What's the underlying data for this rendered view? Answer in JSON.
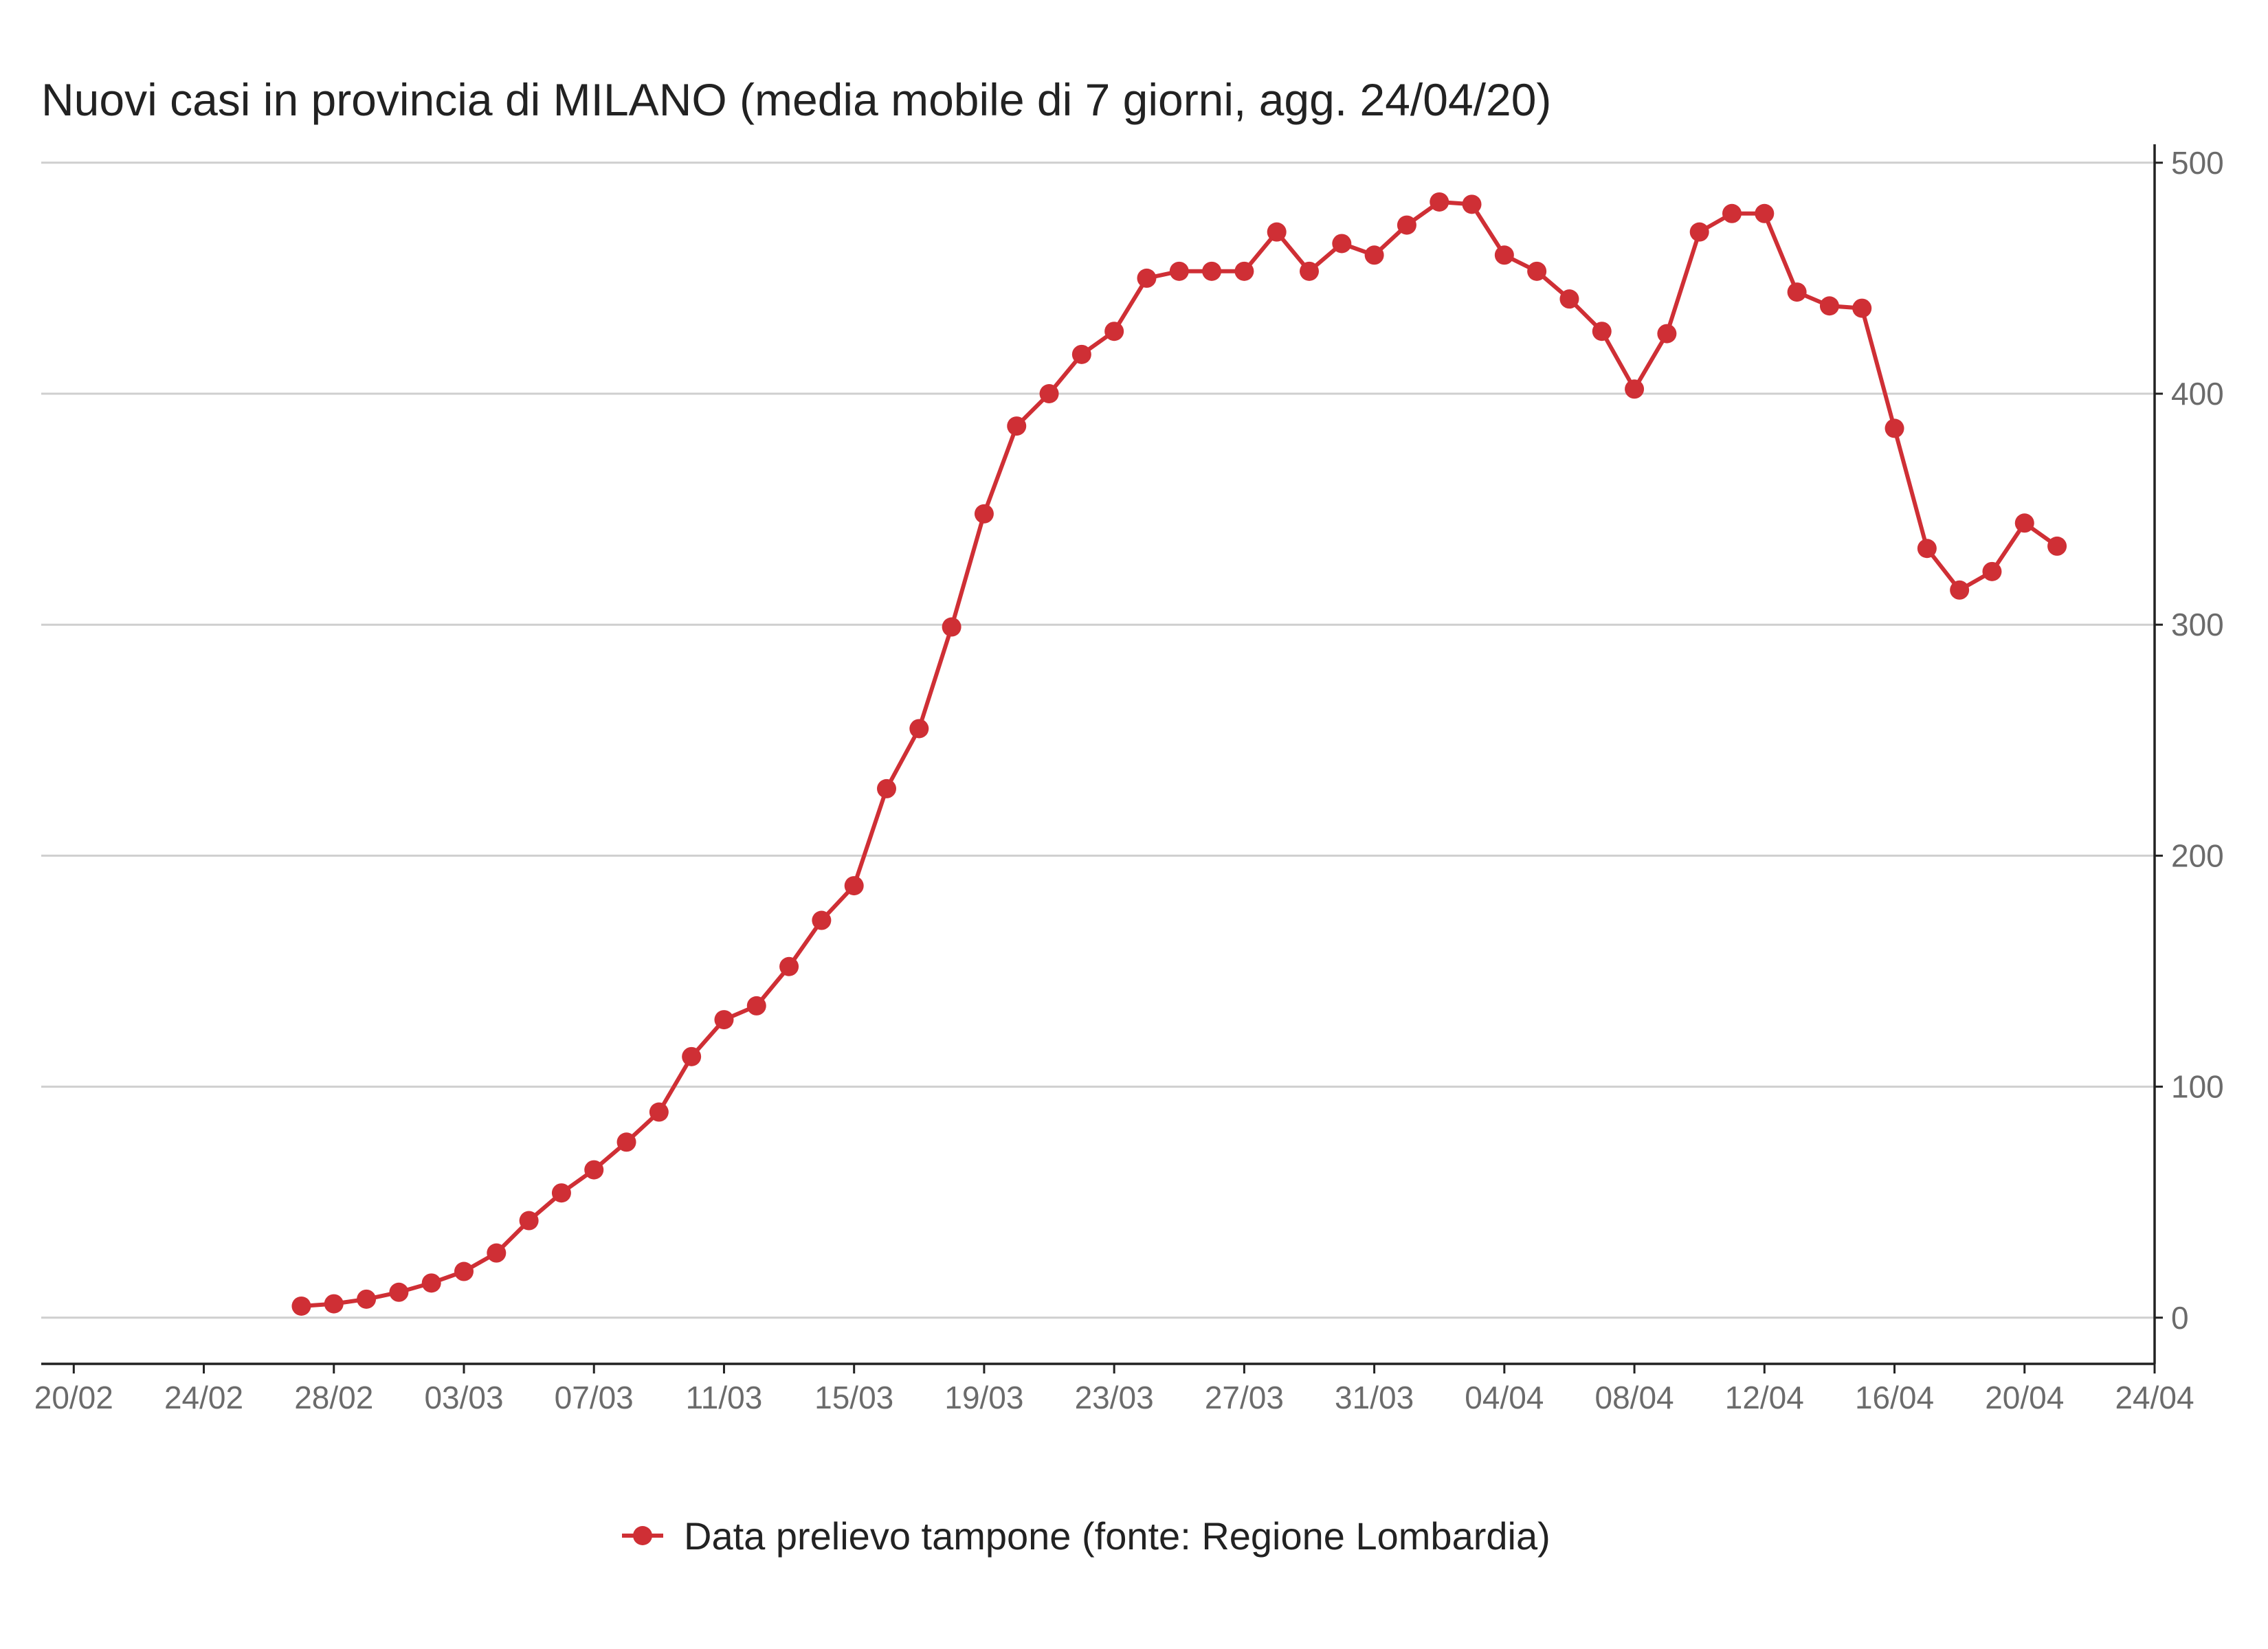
{
  "colors": {
    "series": "#cf2f35",
    "grid": "#cfcfcf",
    "axis": "#222222",
    "tick_text": "#6b6b6b"
  },
  "chart_data": {
    "type": "line",
    "title": "Nuovi casi in provincia di MILANO (media mobile di 7 giorni, agg. 24/04/20)",
    "xlabel": "",
    "ylabel": "",
    "y_axis_side": "right",
    "ylim": [
      -20,
      505
    ],
    "y_ticks": [
      0,
      100,
      200,
      300,
      400,
      500
    ],
    "x_tick_labels": [
      "20/02",
      "24/02",
      "28/02",
      "03/03",
      "07/03",
      "11/03",
      "15/03",
      "19/03",
      "23/03",
      "27/03",
      "31/03",
      "04/04",
      "08/04",
      "12/04",
      "16/04",
      "20/04",
      "24/04"
    ],
    "x_tick_dates": [
      "2020-02-20",
      "2020-02-24",
      "2020-02-28",
      "2020-03-03",
      "2020-03-07",
      "2020-03-11",
      "2020-03-15",
      "2020-03-19",
      "2020-03-23",
      "2020-03-27",
      "2020-03-31",
      "2020-04-04",
      "2020-04-08",
      "2020-04-12",
      "2020-04-16",
      "2020-04-20",
      "2020-04-24"
    ],
    "xlim": [
      "2020-02-19",
      "2020-04-24"
    ],
    "grid": "horizontal",
    "legend_position": "bottom-center",
    "series": [
      {
        "name": "Data prelievo tampone (fonte: Regione Lombardia)",
        "color": "#cf2f35",
        "marker": "circle",
        "x": [
          "2020-02-27",
          "2020-02-28",
          "2020-02-29",
          "2020-03-01",
          "2020-03-02",
          "2020-03-03",
          "2020-03-04",
          "2020-03-05",
          "2020-03-06",
          "2020-03-07",
          "2020-03-08",
          "2020-03-09",
          "2020-03-10",
          "2020-03-11",
          "2020-03-12",
          "2020-03-13",
          "2020-03-14",
          "2020-03-15",
          "2020-03-16",
          "2020-03-17",
          "2020-03-18",
          "2020-03-19",
          "2020-03-20",
          "2020-03-21",
          "2020-03-22",
          "2020-03-23",
          "2020-03-24",
          "2020-03-25",
          "2020-03-26",
          "2020-03-27",
          "2020-03-28",
          "2020-03-29",
          "2020-03-30",
          "2020-03-31",
          "2020-04-01",
          "2020-04-02",
          "2020-04-03",
          "2020-04-04",
          "2020-04-05",
          "2020-04-06",
          "2020-04-07",
          "2020-04-08",
          "2020-04-09",
          "2020-04-10",
          "2020-04-11",
          "2020-04-12",
          "2020-04-13",
          "2020-04-14",
          "2020-04-15",
          "2020-04-16",
          "2020-04-17",
          "2020-04-18",
          "2020-04-19",
          "2020-04-20",
          "2020-04-21"
        ],
        "values": [
          5,
          6,
          8,
          11,
          15,
          20,
          28,
          42,
          54,
          64,
          76,
          89,
          113,
          129,
          135,
          152,
          172,
          187,
          229,
          255,
          299,
          348,
          386,
          400,
          417,
          427,
          450,
          453,
          453,
          453,
          470,
          453,
          465,
          460,
          473,
          483,
          482,
          460,
          453,
          441,
          427,
          402,
          426,
          470,
          478,
          478,
          444,
          438,
          437,
          385,
          333,
          315,
          323,
          344,
          334
        ]
      }
    ]
  }
}
